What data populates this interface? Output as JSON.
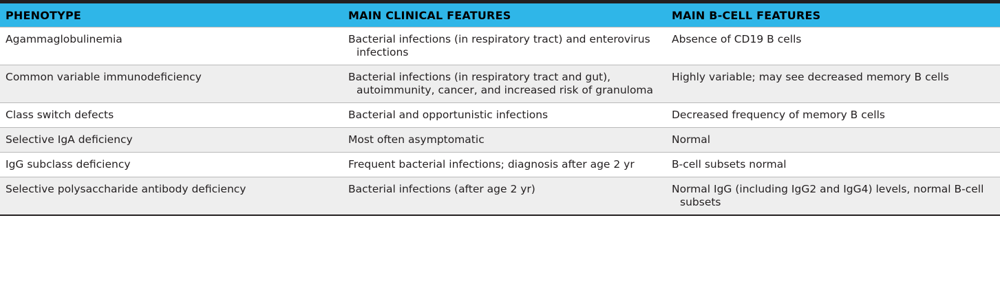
{
  "colors": {
    "header_bg": "#2fb6e8",
    "row_alt_bg": "#eeeeee",
    "rule": "#231f20"
  },
  "table": {
    "headers": [
      "PHENOTYPE",
      "MAIN CLINICAL FEATURES",
      "MAIN B-CELL FEATURES"
    ],
    "rows": [
      [
        "Agammaglobulinemia",
        "Bacterial infections (in respiratory tract) and enterovirus infections",
        "Absence of CD19 B cells"
      ],
      [
        "Common variable immunodeficiency",
        "Bacterial infections (in respiratory tract and gut), autoimmunity, cancer, and increased risk of granuloma",
        "Highly variable; may see decreased memory B cells"
      ],
      [
        "Class switch defects",
        "Bacterial and opportunistic infections",
        "Decreased frequency of memory B cells"
      ],
      [
        "Selective IgA deficiency",
        "Most often asymptomatic",
        "Normal"
      ],
      [
        "IgG subclass deficiency",
        "Frequent bacterial infections; diagnosis after age 2 yr",
        "B-cell subsets normal"
      ],
      [
        "Selective polysaccharide antibody deficiency",
        "Bacterial infections (after age 2 yr)",
        "Normal IgG (including IgG2 and IgG4) levels, normal B-cell subsets"
      ]
    ]
  }
}
